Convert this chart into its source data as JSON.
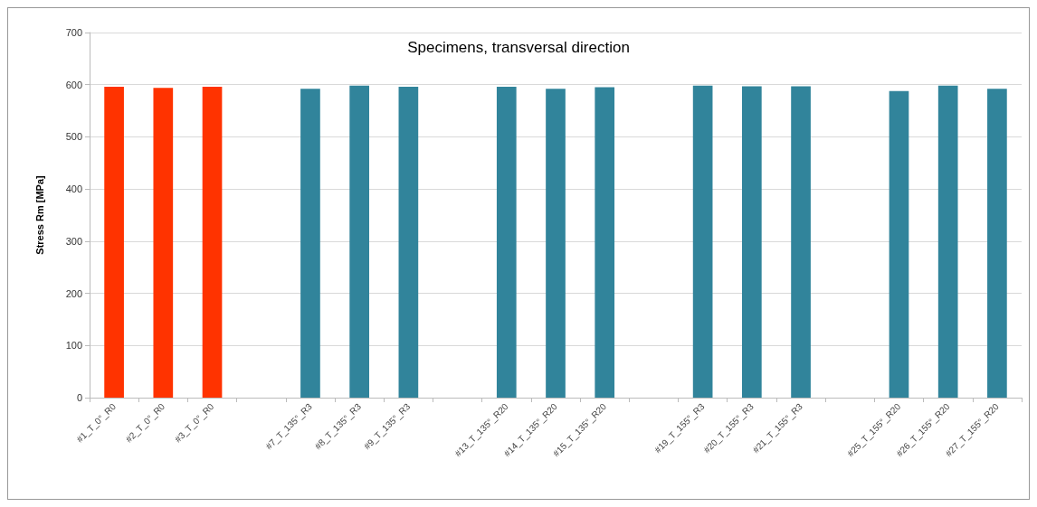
{
  "chart_data": {
    "type": "bar",
    "title": "Specimens, transversal direction",
    "ylabel": "Stress Rm [MPa]",
    "categories": [
      "#1_T_0°_R0",
      "#2_T_0°_R0",
      "#3_T_0°_R0",
      null,
      "#7_T_135°_R3",
      "#8_T_135°_R3",
      "#9_T_135°_R3",
      null,
      "#13_T_135°_R20",
      "#14_T_135°_R20",
      "#15_T_135°_R20",
      null,
      "#19_T_155°_R3",
      "#20_T_155°_R3",
      "#21_T_155°_R3",
      null,
      "#25_T_155°_R20",
      "#26_T_155°_R20",
      "#27_T_155°_R20"
    ],
    "values": [
      596,
      594,
      596,
      null,
      592,
      598,
      596,
      null,
      596,
      592,
      595,
      null,
      598,
      597,
      597,
      null,
      588,
      598,
      592
    ],
    "colors": [
      "#ff3300",
      "#ff3300",
      "#ff3300",
      "#31849b",
      "#31849b",
      "#31849b",
      "#31849b",
      "#31849b",
      "#31849b",
      "#31849b",
      "#31849b",
      "#31849b",
      "#31849b",
      "#31849b",
      "#31849b",
      "#31849b",
      "#31849b",
      "#31849b",
      "#31849b"
    ],
    "ylim": [
      0,
      700
    ],
    "yticks": [
      0,
      100,
      200,
      300,
      400,
      500,
      600,
      700
    ],
    "grid": "y"
  }
}
